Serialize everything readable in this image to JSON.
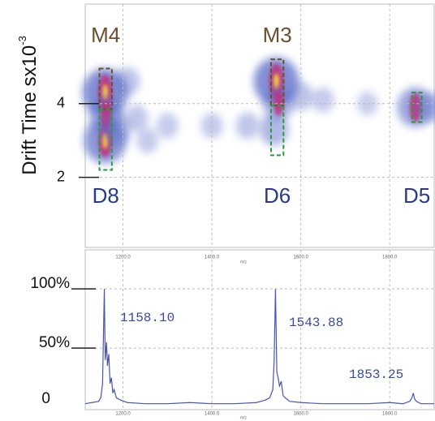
{
  "chart_data": [
    {
      "type": "heatmap",
      "ylabel": "Drift Time sx10",
      "ylabel_exponent": "-3",
      "xlabel": "m/z",
      "xlim": [
        1115,
        1900
      ],
      "ylim": [
        0.1,
        6.7
      ],
      "xticks": [
        {
          "value": 1200,
          "label": "1200.0"
        },
        {
          "value": 1400,
          "label": "1400.0"
        },
        {
          "value": 1600,
          "label": "1600.0"
        },
        {
          "value": 1800,
          "label": "1800.0"
        }
      ],
      "yticks": [
        2,
        4
      ],
      "grid": true,
      "spots": [
        {
          "x": 1160,
          "y": 4.3,
          "intensity": 1.0
        },
        {
          "x": 1160,
          "y": 3.0,
          "intensity": 0.9
        },
        {
          "x": 1162,
          "y": 3.7,
          "intensity": 0.6
        },
        {
          "x": 1185,
          "y": 3.3,
          "intensity": 0.4
        },
        {
          "x": 1210,
          "y": 4.6,
          "intensity": 0.3
        },
        {
          "x": 1230,
          "y": 3.6,
          "intensity": 0.25
        },
        {
          "x": 1255,
          "y": 3.0,
          "intensity": 0.2
        },
        {
          "x": 1300,
          "y": 3.4,
          "intensity": 0.2
        },
        {
          "x": 1400,
          "y": 3.4,
          "intensity": 0.2
        },
        {
          "x": 1480,
          "y": 3.4,
          "intensity": 0.25
        },
        {
          "x": 1540,
          "y": 3.3,
          "intensity": 0.45
        },
        {
          "x": 1545,
          "y": 4.6,
          "intensity": 1.0
        },
        {
          "x": 1550,
          "y": 4.0,
          "intensity": 0.5
        },
        {
          "x": 1600,
          "y": 4.2,
          "intensity": 0.3
        },
        {
          "x": 1650,
          "y": 4.1,
          "intensity": 0.2
        },
        {
          "x": 1750,
          "y": 4.0,
          "intensity": 0.15
        },
        {
          "x": 1858,
          "y": 3.9,
          "intensity": 0.7
        },
        {
          "x": 1890,
          "y": 3.9,
          "intensity": 0.35
        }
      ],
      "regions": [
        {
          "label": "M4",
          "color": "#6b4f2f",
          "x": [
            1147,
            1175
          ],
          "y": [
            3.85,
            4.95
          ]
        },
        {
          "label": "D8",
          "color": "#2e9a3e",
          "x": [
            1147,
            1175
          ],
          "y": [
            2.2,
            3.85
          ]
        },
        {
          "label": "M3",
          "color": "#6b4f2f",
          "x": [
            1533,
            1561
          ],
          "y": [
            3.95,
            5.2
          ]
        },
        {
          "label": "D6",
          "color": "#2e9a3e",
          "x": [
            1533,
            1561
          ],
          "y": [
            2.6,
            3.95
          ]
        },
        {
          "label": "D5",
          "color": "#2e9a3e",
          "x": [
            1850,
            1872
          ],
          "y": [
            3.5,
            4.3
          ]
        }
      ]
    },
    {
      "type": "line",
      "xlabel": "m/z",
      "xlim": [
        1115,
        1900
      ],
      "ylim": [
        -2,
        133
      ],
      "xticks": [
        {
          "value": 1200,
          "label": "1200.0"
        },
        {
          "value": 1400,
          "label": "1400.0"
        },
        {
          "value": 1600,
          "label": "1600.0"
        },
        {
          "value": 1800,
          "label": "1800.0"
        }
      ],
      "yticks": [
        {
          "value": 100,
          "label": "100%"
        },
        {
          "value": 50,
          "label": "50%"
        },
        0
      ],
      "grid": true,
      "x": [
        1115,
        1130,
        1145,
        1150,
        1154,
        1156,
        1158,
        1160,
        1163,
        1165,
        1168,
        1171,
        1174,
        1177,
        1180,
        1185,
        1195,
        1210,
        1250,
        1300,
        1350,
        1400,
        1450,
        1500,
        1520,
        1530,
        1537,
        1540,
        1543,
        1546,
        1549,
        1552,
        1556,
        1560,
        1565,
        1575,
        1600,
        1650,
        1700,
        1750,
        1800,
        1830,
        1845,
        1850,
        1853,
        1856,
        1860,
        1870,
        1900
      ],
      "series": [
        {
          "color": "#4a55b0",
          "values": [
            3,
            4,
            5,
            8,
            20,
            60,
            100,
            40,
            55,
            35,
            45,
            20,
            25,
            12,
            15,
            8,
            6,
            4,
            3,
            3,
            4,
            3,
            3,
            4,
            6,
            8,
            15,
            40,
            100,
            30,
            25,
            18,
            22,
            10,
            8,
            5,
            4,
            3,
            3,
            3,
            4,
            3,
            5,
            8,
            12,
            7,
            5,
            3,
            3
          ]
        }
      ],
      "peak_labels": [
        "1158.10",
        "1543.88",
        "1853.25"
      ]
    }
  ]
}
